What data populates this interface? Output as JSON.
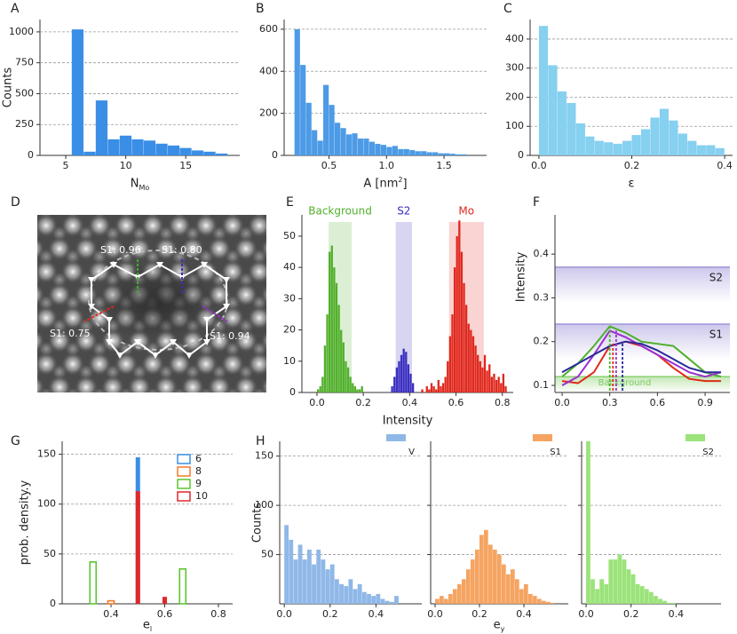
{
  "chart_data": [
    {
      "label": "A",
      "type": "histogram",
      "color": "#3a8ee6",
      "bins": [
        5.5,
        6.5,
        7.5,
        8.5,
        9.5,
        10.5,
        11.5,
        12.5,
        13.5,
        14.5,
        15.5,
        16.5,
        17.5,
        18.5
      ],
      "values": [
        1020,
        30,
        445,
        130,
        160,
        130,
        120,
        95,
        80,
        60,
        40,
        30,
        15
      ],
      "xlim": [
        2.85,
        19.5
      ],
      "ylim": [
        0,
        1100
      ],
      "xticks": [
        5,
        10,
        15
      ],
      "yticks": [
        0,
        250,
        500,
        750,
        1000
      ],
      "ylabel": "Counts",
      "xlabel": "N",
      "xlabel_sub": "Mo",
      "grid": true
    },
    {
      "label": "B",
      "type": "histogram",
      "color": "#4d9be6",
      "bins": [
        0.2,
        0.25,
        0.3,
        0.35,
        0.4,
        0.45,
        0.5,
        0.55,
        0.6,
        0.65,
        0.7,
        0.75,
        0.8,
        0.85,
        0.9,
        0.95,
        1.0,
        1.05,
        1.1,
        1.15,
        1.2,
        1.25,
        1.3,
        1.35,
        1.4,
        1.45,
        1.5,
        1.55,
        1.6,
        1.65,
        1.7
      ],
      "values": [
        600,
        430,
        250,
        120,
        70,
        335,
        240,
        155,
        130,
        100,
        105,
        80,
        80,
        65,
        55,
        50,
        40,
        45,
        30,
        30,
        25,
        20,
        20,
        15,
        15,
        10,
        10,
        8,
        5,
        5
      ],
      "xlim": [
        0.11,
        1.87
      ],
      "ylim": [
        0,
        646
      ],
      "xticks": [
        0.5,
        {
          "value": 1,
          "label": "1.0"
        },
        1.5
      ],
      "yticks": [
        0,
        200,
        400,
        600
      ],
      "xlabel": "A [nm",
      "xlabel_sup": "2",
      "xlabel_end": "]",
      "grid": true
    },
    {
      "label": "C",
      "type": "histogram",
      "color": "#86d0f0",
      "bins": [
        0,
        0.02,
        0.04,
        0.06,
        0.08,
        0.1,
        0.12,
        0.14,
        0.16,
        0.18,
        0.2,
        0.22,
        0.24,
        0.26,
        0.28,
        0.3,
        0.32,
        0.34,
        0.36,
        0.38,
        0.4
      ],
      "values": [
        445,
        310,
        220,
        180,
        110,
        65,
        50,
        45,
        40,
        50,
        70,
        90,
        130,
        160,
        120,
        75,
        50,
        35,
        35,
        25
      ],
      "xlim": [
        -0.019,
        0.417
      ],
      "ylim": [
        0,
        467
      ],
      "xticks": [
        {
          "value": 0,
          "label": "0.0"
        },
        0.2,
        0.4
      ],
      "yticks": [
        0,
        100,
        200,
        300,
        400
      ],
      "xlabel": "ε",
      "grid": true
    },
    {
      "label": "D",
      "type": "image",
      "annotations": [
        "S1: 0.96",
        "S1: 0.80",
        "S1: 0.75",
        "S1: 0.94"
      ]
    },
    {
      "label": "E",
      "type": "histogram",
      "xlabel": "Intensity",
      "xlim": [
        -0.065,
        0.847
      ],
      "ylim": [
        0,
        56.8
      ],
      "xticks": [
        {
          "value": 0,
          "label": "0.0"
        },
        0.2,
        0.4,
        0.6,
        0.8
      ],
      "yticks": [
        0,
        10,
        20,
        30,
        40,
        50
      ],
      "series": [
        {
          "name": "Background",
          "color": "#52b02c",
          "band": [
            0.05,
            0.15
          ],
          "bins": [
            0,
            0.01,
            0.02,
            0.03,
            0.04,
            0.05,
            0.06,
            0.07,
            0.08,
            0.09,
            0.1,
            0.11,
            0.12,
            0.13,
            0.14,
            0.15,
            0.16,
            0.17,
            0.18,
            0.19,
            0.2
          ],
          "values": [
            1,
            2,
            5,
            15,
            25,
            45,
            47,
            40,
            35,
            28,
            20,
            16,
            10,
            8,
            5,
            3,
            2,
            1,
            1,
            2
          ]
        },
        {
          "name": "S2",
          "color": "#3a2fc0",
          "band": [
            0.34,
            0.41
          ],
          "bins": [
            0.32,
            0.33,
            0.34,
            0.35,
            0.36,
            0.37,
            0.38,
            0.39,
            0.4,
            0.41,
            0.42
          ],
          "values": [
            2,
            5,
            8,
            10,
            12,
            14,
            13,
            9,
            6,
            3
          ]
        },
        {
          "name": "Mo",
          "color": "#e0281e",
          "band": [
            0.57,
            0.72
          ],
          "bins": [
            0.45,
            0.46,
            0.47,
            0.48,
            0.49,
            0.5,
            0.51,
            0.52,
            0.53,
            0.54,
            0.55,
            0.56,
            0.57,
            0.58,
            0.59,
            0.6,
            0.61,
            0.62,
            0.63,
            0.64,
            0.65,
            0.66,
            0.67,
            0.68,
            0.69,
            0.7,
            0.71,
            0.72,
            0.73,
            0.74,
            0.75,
            0.76,
            0.77,
            0.78,
            0.79,
            0.8,
            0.81,
            0.82
          ],
          "values": [
            1,
            0,
            2,
            1,
            3,
            2,
            1,
            4,
            2,
            3,
            5,
            10,
            18,
            25,
            40,
            50,
            55,
            45,
            35,
            28,
            22,
            20,
            18,
            15,
            12,
            10,
            8,
            12,
            7,
            9,
            5,
            6,
            4,
            5,
            3,
            6,
            2
          ]
        }
      ]
    },
    {
      "label": "F",
      "type": "line",
      "ylabel": "Intensity",
      "xlim": [
        -0.045,
        1.056
      ],
      "ylim": [
        0.0838,
        0.4895
      ],
      "xticks": [
        {
          "value": 0,
          "label": "0.0"
        },
        0.3,
        0.6,
        0.9
      ],
      "yticks": [
        0.1,
        0.2,
        0.3,
        0.4
      ],
      "x": [
        0,
        0.1,
        0.2,
        0.3,
        0.4,
        0.5,
        0.6,
        0.7,
        0.8,
        0.9,
        1.0
      ],
      "bands": [
        {
          "name": "S2",
          "value": 0.37,
          "color": "#8f84d4"
        },
        {
          "name": "S1",
          "value": 0.24,
          "color": "#8f84d4"
        },
        {
          "name": "Background",
          "value": 0.12,
          "color": "#7ccb5e"
        }
      ],
      "series": [
        {
          "color": "#4fb02a",
          "values": [
            0.12,
            0.15,
            0.19,
            0.235,
            0.22,
            0.2,
            0.195,
            0.19,
            0.16,
            0.13,
            0.12
          ],
          "peak": [
            0.3,
            0.235
          ]
        },
        {
          "color": "#e02a1a",
          "values": [
            0.11,
            0.105,
            0.13,
            0.19,
            0.2,
            0.19,
            0.17,
            0.14,
            0.115,
            0.11,
            0.11
          ],
          "peak": [
            0.32,
            0.2
          ]
        },
        {
          "color": "#9b30d0",
          "values": [
            0.1,
            0.12,
            0.17,
            0.225,
            0.21,
            0.19,
            0.17,
            0.15,
            0.13,
            0.12,
            0.13
          ],
          "peak": [
            0.34,
            0.225
          ]
        },
        {
          "color": "#2a2a9a",
          "values": [
            0.13,
            0.15,
            0.17,
            0.19,
            0.2,
            0.195,
            0.18,
            0.16,
            0.14,
            0.13,
            0.13
          ],
          "peak": [
            0.38,
            0.2
          ]
        }
      ]
    },
    {
      "label": "G",
      "type": "bar",
      "ylabel": "prob. density.y",
      "xlabel": "e",
      "xlabel_sub": "l",
      "xlim": [
        0.218,
        0.853
      ],
      "ylim": [
        0,
        163
      ],
      "xticks": [
        0.4,
        0.6,
        0.8
      ],
      "yticks": [
        0,
        50,
        100,
        150
      ],
      "grid": true,
      "x": [
        0.333,
        0.4,
        0.5,
        0.6,
        0.667
      ],
      "series": [
        {
          "name": "6",
          "color": "#3a8ee6",
          "fill": true,
          "values": [
            null,
            null,
            147,
            null,
            null
          ]
        },
        {
          "name": "8",
          "color": "#f07a2a",
          "fill": false,
          "values": [
            null,
            3,
            null,
            null,
            null
          ]
        },
        {
          "name": "9",
          "color": "#5cc630",
          "fill": false,
          "values": [
            42,
            null,
            null,
            null,
            35
          ]
        },
        {
          "name": "10",
          "color": "#e0282a",
          "fill": true,
          "values": [
            null,
            null,
            113,
            7,
            null
          ]
        }
      ]
    },
    {
      "label": "H",
      "type": "histogram_group",
      "ylabel": "Counts",
      "xlabel": "e",
      "xlabel_sub": "y",
      "xlim": [
        -0.02,
        0.6
      ],
      "ylim": [
        0,
        165
      ],
      "xticks": [
        {
          "value": 0,
          "label": "0.0"
        },
        0.2,
        0.4
      ],
      "yticks": [
        50,
        100,
        150
      ],
      "grid": true,
      "panels": [
        {
          "name": "V",
          "color": "#8fb8e8",
          "bins": [
            0,
            0.02,
            0.04,
            0.06,
            0.08,
            0.1,
            0.12,
            0.14,
            0.16,
            0.18,
            0.2,
            0.22,
            0.24,
            0.26,
            0.28,
            0.3,
            0.32,
            0.34,
            0.36,
            0.38,
            0.4,
            0.42,
            0.44,
            0.46,
            0.48,
            0.5
          ],
          "values": [
            80,
            65,
            45,
            60,
            45,
            55,
            40,
            55,
            45,
            35,
            40,
            25,
            20,
            18,
            25,
            15,
            20,
            12,
            10,
            8,
            10,
            5,
            3,
            2,
            8
          ]
        },
        {
          "name": "S1",
          "color": "#f5a462",
          "bins": [
            0,
            0.02,
            0.04,
            0.06,
            0.08,
            0.1,
            0.12,
            0.14,
            0.16,
            0.18,
            0.2,
            0.22,
            0.24,
            0.26,
            0.28,
            0.3,
            0.32,
            0.34,
            0.36,
            0.38,
            0.4,
            0.42,
            0.44,
            0.46,
            0.48,
            0.5,
            0.52,
            0.54
          ],
          "values": [
            5,
            8,
            5,
            10,
            15,
            20,
            25,
            35,
            45,
            55,
            70,
            75,
            60,
            55,
            50,
            40,
            30,
            35,
            25,
            15,
            20,
            10,
            8,
            5,
            3,
            2,
            1
          ]
        },
        {
          "name": "S2",
          "color": "#9be37a",
          "bins": [
            0,
            0.02,
            0.04,
            0.06,
            0.08,
            0.1,
            0.12,
            0.14,
            0.16,
            0.18,
            0.2,
            0.22,
            0.24,
            0.26,
            0.28,
            0.3,
            0.32,
            0.34,
            0.36,
            0.38,
            0.4
          ],
          "values": [
            165,
            25,
            15,
            25,
            20,
            45,
            45,
            50,
            45,
            35,
            30,
            20,
            18,
            15,
            12,
            8,
            5,
            3,
            1,
            1
          ]
        }
      ]
    }
  ]
}
